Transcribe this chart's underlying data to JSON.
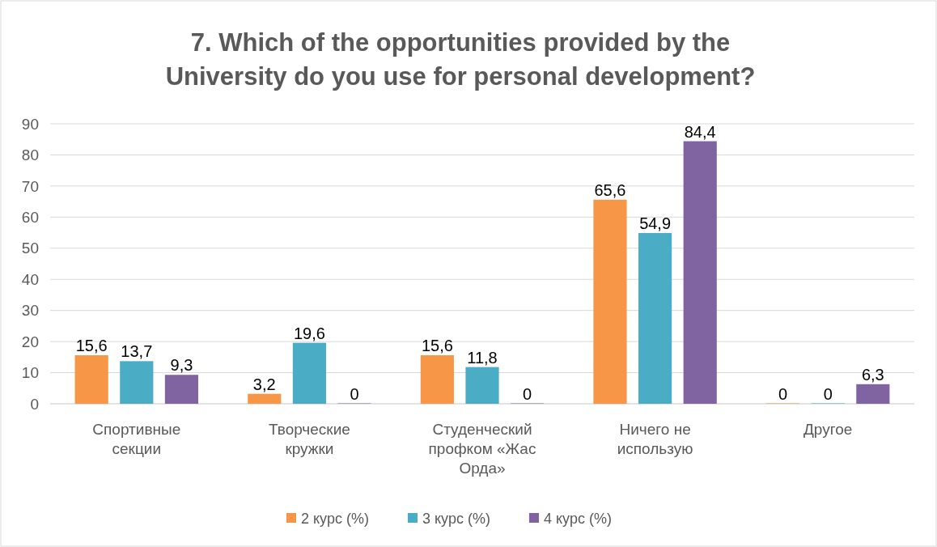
{
  "chart_data": {
    "type": "bar",
    "title": "7. Which of the opportunities provided by the University do you use for personal development?",
    "categories": [
      "Спортивные секции",
      "Творческие кружки",
      "Студенческий профком «Жас Орда»",
      "Ничего не использую",
      "Другое"
    ],
    "series": [
      {
        "name": "2 курс (%)",
        "color": "#f79646",
        "values": [
          15.6,
          3.2,
          15.6,
          65.6,
          0
        ],
        "value_labels": [
          "15,6",
          "3,2",
          "15,6",
          "65,6",
          "0"
        ]
      },
      {
        "name": "3 курс (%)",
        "color": "#4bacc6",
        "values": [
          13.7,
          19.6,
          11.8,
          54.9,
          0
        ],
        "value_labels": [
          "13,7",
          "19,6",
          "11,8",
          "54,9",
          "0"
        ]
      },
      {
        "name": "4 курс (%)",
        "color": "#8064a2",
        "values": [
          9.3,
          0,
          0,
          84.4,
          6.3
        ],
        "value_labels": [
          "9,3",
          "0",
          "0",
          "84,4",
          "6,3"
        ]
      }
    ],
    "ylim": [
      0,
      90
    ],
    "yticks": [
      0,
      10,
      20,
      30,
      40,
      50,
      60,
      70,
      80,
      90
    ],
    "grid": "y",
    "legend": "bottom"
  }
}
